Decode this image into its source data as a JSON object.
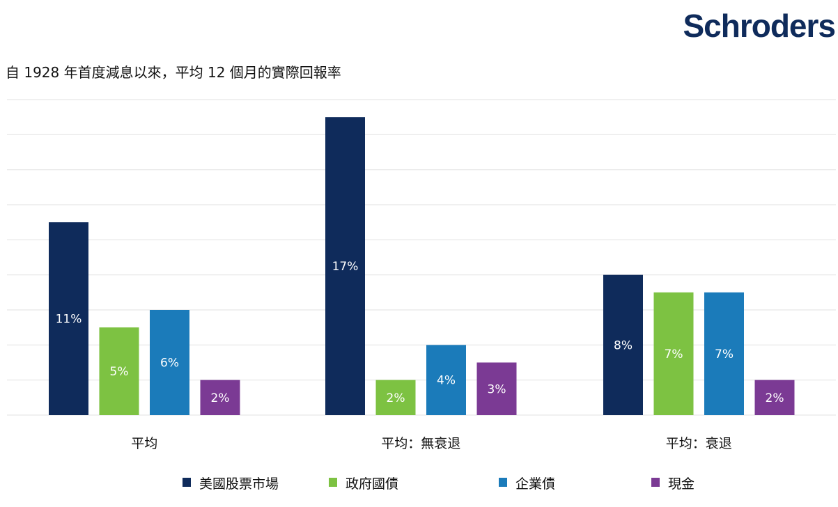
{
  "brand": "Schroders",
  "chart_data": {
    "type": "bar",
    "title": "自 1928 年首度減息以來，平均 12 個月的實際回報率",
    "xlabel": "",
    "ylabel": "",
    "ylim": [
      0,
      18
    ],
    "grid_step": 2,
    "grid": true,
    "legend_position": "bottom",
    "categories": [
      "平均",
      "平均：無衰退",
      "平均：衰退"
    ],
    "series": [
      {
        "name": "美國股票市場",
        "color": "#0f2b5b",
        "values": [
          11,
          17,
          8
        ]
      },
      {
        "name": "政府國債",
        "color": "#7dc242",
        "values": [
          5,
          2,
          7
        ]
      },
      {
        "name": "企業債",
        "color": "#1b7bba",
        "values": [
          6,
          4,
          7
        ]
      },
      {
        "name": "現金",
        "color": "#7b3a94",
        "values": [
          2,
          3,
          2
        ]
      }
    ],
    "value_suffix": "%"
  }
}
